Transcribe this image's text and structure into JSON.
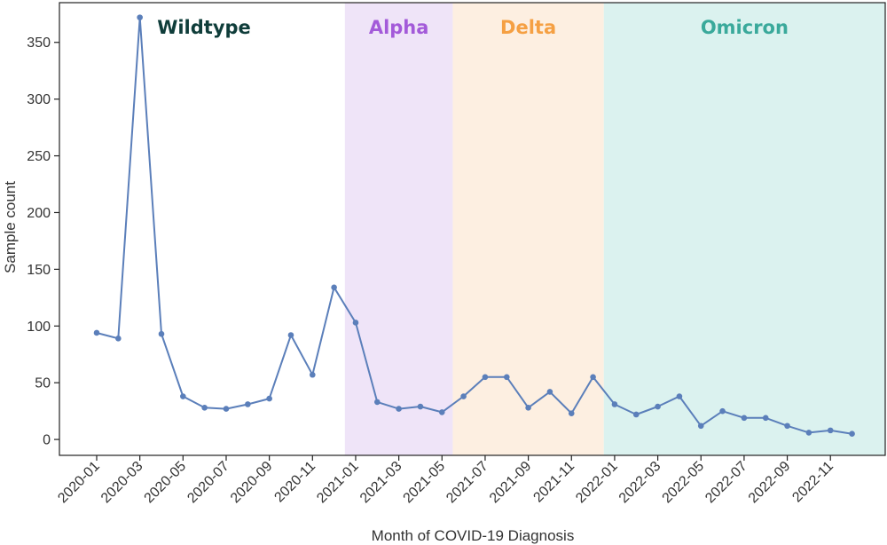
{
  "chart_data": {
    "type": "line",
    "title": "",
    "xlabel": "Month of COVID-19 Diagnosis",
    "ylabel": "Sample count",
    "ylim": [
      -14,
      385
    ],
    "yticks": [
      0,
      50,
      100,
      150,
      200,
      250,
      300,
      350
    ],
    "grid": false,
    "x": [
      "2020-01",
      "2020-02",
      "2020-03",
      "2020-04",
      "2020-05",
      "2020-06",
      "2020-07",
      "2020-08",
      "2020-09",
      "2020-10",
      "2020-11",
      "2020-12",
      "2021-01",
      "2021-02",
      "2021-03",
      "2021-04",
      "2021-05",
      "2021-06",
      "2021-07",
      "2021-08",
      "2021-09",
      "2021-10",
      "2021-11",
      "2021-12",
      "2022-01",
      "2022-02",
      "2022-03",
      "2022-04",
      "2022-05",
      "2022-06",
      "2022-07",
      "2022-08",
      "2022-09",
      "2022-10",
      "2022-11",
      "2022-12"
    ],
    "xtick_labels": [
      "2020-01",
      "2020-03",
      "2020-05",
      "2020-07",
      "2020-09",
      "2020-11",
      "2021-01",
      "2021-03",
      "2021-05",
      "2021-07",
      "2021-09",
      "2021-11",
      "2022-01",
      "2022-03",
      "2022-05",
      "2022-07",
      "2022-09",
      "2022-11"
    ],
    "series": [
      {
        "values": [
          94,
          89,
          372,
          93,
          38,
          28,
          27,
          31,
          36,
          92,
          57,
          134,
          103,
          33,
          27,
          29,
          24,
          38,
          55,
          55,
          28,
          42,
          23,
          55,
          31,
          22,
          29,
          38,
          12,
          25,
          19,
          19,
          12,
          6,
          8,
          5
        ],
        "color": "#5b7fba"
      }
    ],
    "variant_periods": [
      {
        "label": "Wildtype",
        "start": "2020-01",
        "end": "2021-01",
        "fill": "#ffffff",
        "text_color": "#0f3d3a"
      },
      {
        "label": "Alpha",
        "start": "2021-01",
        "end": "2021-06",
        "fill": "#efe4f8",
        "text_color": "#a35ad9"
      },
      {
        "label": "Delta",
        "start": "2021-06",
        "end": "2022-01",
        "fill": "#fdefe1",
        "text_color": "#f5a043"
      },
      {
        "label": "Omicron",
        "start": "2022-01",
        "end": "2022-12",
        "fill": "#dbf2ef",
        "text_color": "#3aa99b"
      }
    ]
  }
}
